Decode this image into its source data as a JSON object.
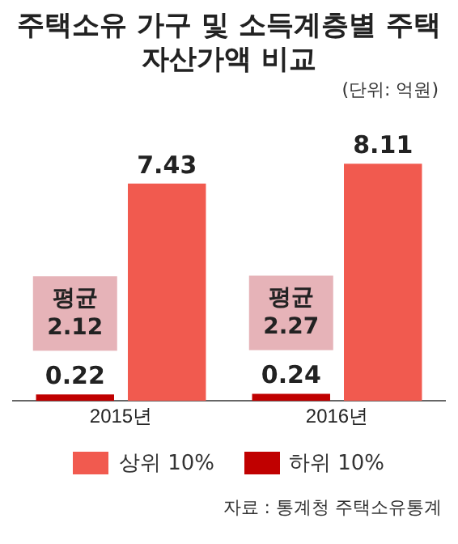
{
  "chart_data": {
    "type": "bar",
    "title": "주택소유 가구 및 소득계층별 주택자산가액 비교",
    "subtitle": "(단위: 억원)",
    "categories": [
      "2015년",
      "2016년"
    ],
    "series": [
      {
        "name": "상위 10%",
        "color": "#f15a4f",
        "values": [
          7.43,
          8.11
        ]
      },
      {
        "name": "하위 10%",
        "color": "#c00000",
        "values": [
          0.22,
          0.24
        ]
      }
    ],
    "data_labels": true,
    "grid": false,
    "legend": "bottom",
    "annotations": [
      "평균 2.12",
      "평균 2.27",
      "자료 : 통계청 주택소유통계"
    ]
  }
}
